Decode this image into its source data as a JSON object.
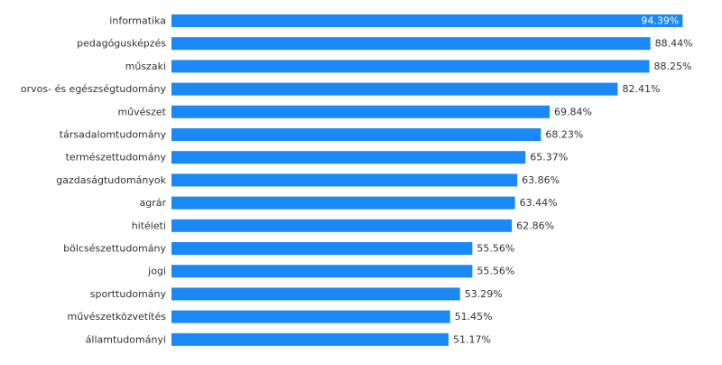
{
  "colors": {
    "bar": "#1a88f5",
    "text": "#333333",
    "label_inside": "#ffffff"
  },
  "chart_data": {
    "type": "bar",
    "orientation": "horizontal",
    "xlim": [
      0,
      100
    ],
    "grid": false,
    "legend": "none",
    "categories": [
      "informatika",
      "pedagógusképzés",
      "műszaki",
      "orvos- és egészségtudomány",
      "művészet",
      "társadalomtudomány",
      "természettudomány",
      "gazdaságtudományok",
      "agrár",
      "hitéleti",
      "bölcsészettudomány",
      "jogi",
      "sporttudomány",
      "művészetközvetítés",
      "államtudományi"
    ],
    "values": [
      94.39,
      88.44,
      88.25,
      82.41,
      69.84,
      68.23,
      65.37,
      63.86,
      63.44,
      62.86,
      55.56,
      55.56,
      53.29,
      51.45,
      51.17
    ],
    "value_labels": [
      "94.39%",
      "88.44%",
      "88.25%",
      "82.41%",
      "69.84%",
      "68.23%",
      "65.37%",
      "63.86%",
      "63.44%",
      "62.86%",
      "55.56%",
      "55.56%",
      "53.29%",
      "51.45%",
      "51.17%"
    ]
  }
}
